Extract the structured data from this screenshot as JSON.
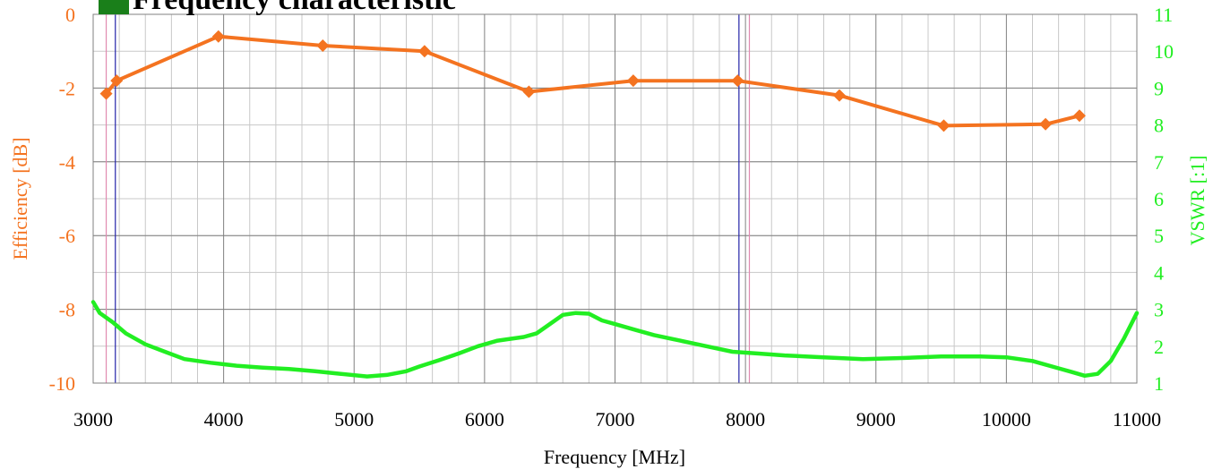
{
  "chart_data": {
    "type": "line",
    "title": "Frequency characteristic",
    "xlabel": "Frequency [MHz]",
    "ylabel_left": "Efficiency [dB]",
    "ylabel_right": "VSWR [:1]",
    "xlim": [
      3000,
      11000
    ],
    "ylim_left": [
      -10,
      0
    ],
    "ylim_right": [
      1,
      11
    ],
    "x_ticks": [
      "3000",
      "4000",
      "5000",
      "6000",
      "7000",
      "8000",
      "9000",
      "10000",
      "11000"
    ],
    "y_left_ticks": [
      "0",
      "-2",
      "-4",
      "-6",
      "-8",
      "-10"
    ],
    "y_right_ticks": [
      "11",
      "10",
      "9",
      "8",
      "7",
      "6",
      "5",
      "4",
      "3",
      "2",
      "1"
    ],
    "grid": true,
    "colors": {
      "efficiency": "#f47320",
      "vswr": "#22ee22",
      "title_marker": "#1a7f1a",
      "grid_major": "#808080",
      "grid_minor": "#c8c8c8",
      "marker_blue": "#2323a8",
      "marker_pink": "#e08ab0"
    },
    "vertical_markers": [
      {
        "x": 3100,
        "color": "#e08ab0"
      },
      {
        "x": 3170,
        "color": "#2323a8"
      },
      {
        "x": 7950,
        "color": "#2323a8"
      },
      {
        "x": 8030,
        "color": "#e08ab0"
      }
    ],
    "series": [
      {
        "axis": "left",
        "marker": "diamond",
        "x": [
          3100,
          3180,
          3960,
          4760,
          5540,
          6340,
          7140,
          7940,
          8720,
          9520,
          10300,
          10560
        ],
        "values": [
          -2.15,
          -1.8,
          -0.6,
          -0.85,
          -1.0,
          -2.1,
          -1.8,
          -1.8,
          -2.2,
          -3.02,
          -2.98,
          -2.75
        ]
      },
      {
        "axis": "right",
        "marker": "none",
        "x": [
          3000,
          3050,
          3150,
          3250,
          3400,
          3550,
          3700,
          3900,
          4100,
          4300,
          4500,
          4700,
          4900,
          5100,
          5250,
          5400,
          5500,
          5650,
          5800,
          5950,
          6100,
          6300,
          6400,
          6500,
          6600,
          6700,
          6800,
          6900,
          7000,
          7150,
          7300,
          7500,
          7700,
          7900,
          8100,
          8300,
          8600,
          8900,
          9200,
          9500,
          9800,
          10000,
          10200,
          10400,
          10500,
          10600,
          10700,
          10800,
          10900,
          11000
        ],
        "values": [
          3.2,
          2.9,
          2.65,
          2.35,
          2.05,
          1.85,
          1.65,
          1.55,
          1.47,
          1.42,
          1.38,
          1.32,
          1.25,
          1.18,
          1.22,
          1.32,
          1.45,
          1.62,
          1.8,
          2.0,
          2.15,
          2.25,
          2.35,
          2.6,
          2.85,
          2.9,
          2.88,
          2.7,
          2.6,
          2.45,
          2.3,
          2.15,
          2.0,
          1.85,
          1.8,
          1.75,
          1.7,
          1.65,
          1.68,
          1.72,
          1.72,
          1.7,
          1.6,
          1.4,
          1.3,
          1.2,
          1.25,
          1.6,
          2.2,
          2.9
        ]
      }
    ]
  }
}
